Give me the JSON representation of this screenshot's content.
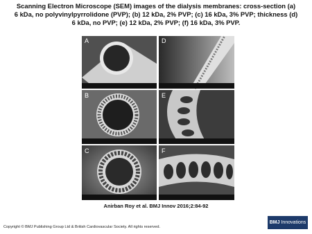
{
  "title_lines": [
    "Scanning Electron Microscope (SEM) images of the dialysis membranes: cross-section (a)",
    "6 kDa, no polyvinylpyrrolidone (PVP); (b) 12 kDa, 2% PVP; (c) 16 kDa, 3% PVP; thickness (d)",
    "6 kDa, no PVP; (e) 12 kDa, 2% PVP; (f) 16 kDa, 3% PVP."
  ],
  "panels": [
    {
      "label": "A"
    },
    {
      "label": "D"
    },
    {
      "label": "B"
    },
    {
      "label": "E"
    },
    {
      "label": "C"
    },
    {
      "label": "F"
    }
  ],
  "citation": "Anirban Roy et al. BMJ Innov 2016;2:84-92",
  "copyright": "Copyright © BMJ Publishing Group Ltd & British Cardiovascular Society. All rights reserved.",
  "logo": {
    "brand": "BMJ",
    "name": "Innovations"
  }
}
